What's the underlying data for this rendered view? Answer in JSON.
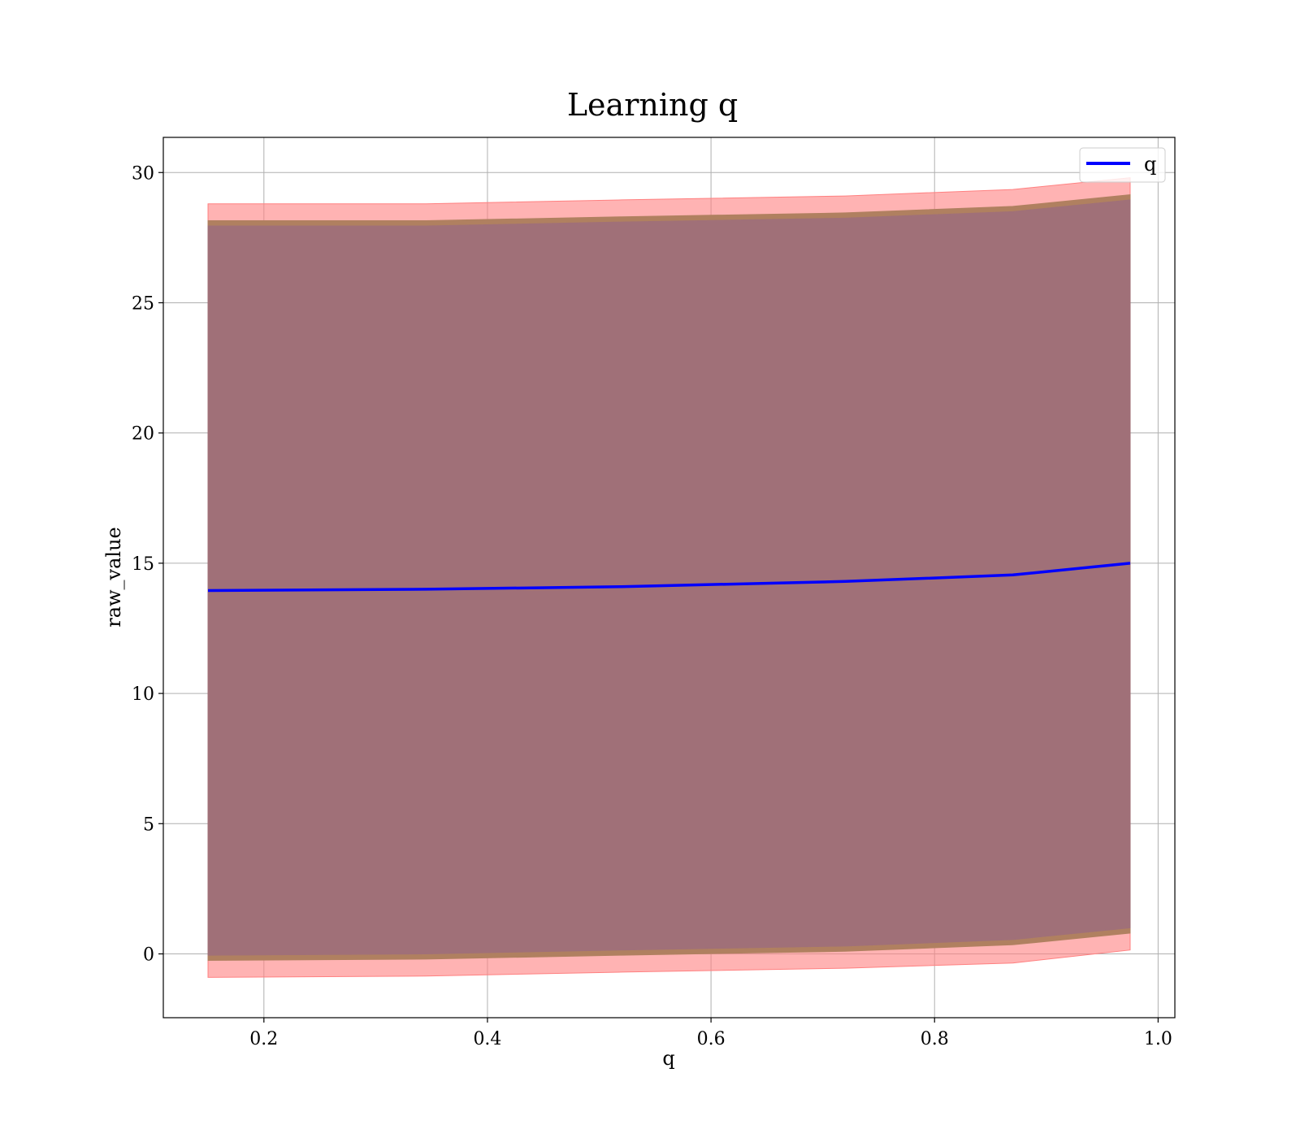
{
  "chart_data": {
    "type": "line",
    "title": "Learning q",
    "xlabel": "q",
    "ylabel": "raw_value",
    "xlim": [
      0.11,
      1.015
    ],
    "ylim": [
      -2.45,
      31.35
    ],
    "xticks": [
      0.2,
      0.4,
      0.6,
      0.8,
      1.0
    ],
    "xtick_labels": [
      "0.2",
      "0.4",
      "0.6",
      "0.8",
      "1.0"
    ],
    "yticks": [
      0,
      5,
      10,
      15,
      20,
      25,
      30
    ],
    "ytick_labels": [
      "0",
      "5",
      "10",
      "15",
      "20",
      "25",
      "30"
    ],
    "grid": true,
    "legend_position": "top-right",
    "x": [
      0.15,
      0.345,
      0.52,
      0.72,
      0.87,
      0.975
    ],
    "series": [
      {
        "name": "q",
        "color": "#0000ff",
        "y": [
          13.95,
          14.0,
          14.1,
          14.3,
          14.55,
          15.0
        ]
      }
    ],
    "bands": [
      {
        "color": "#ff8080",
        "upper": [
          28.8,
          28.8,
          28.95,
          29.1,
          29.35,
          29.8
        ],
        "lower": [
          -0.9,
          -0.85,
          -0.7,
          -0.55,
          -0.35,
          0.15
        ]
      },
      {
        "color": "#b08060",
        "upper": [
          28.15,
          28.15,
          28.3,
          28.45,
          28.7,
          29.15
        ],
        "lower": [
          -0.25,
          -0.2,
          -0.05,
          0.1,
          0.35,
          0.8
        ]
      },
      {
        "color": "#a07078",
        "upper": [
          27.95,
          27.95,
          28.1,
          28.25,
          28.5,
          28.95
        ],
        "lower": [
          -0.05,
          0.0,
          0.15,
          0.3,
          0.55,
          1.0
        ]
      }
    ]
  }
}
